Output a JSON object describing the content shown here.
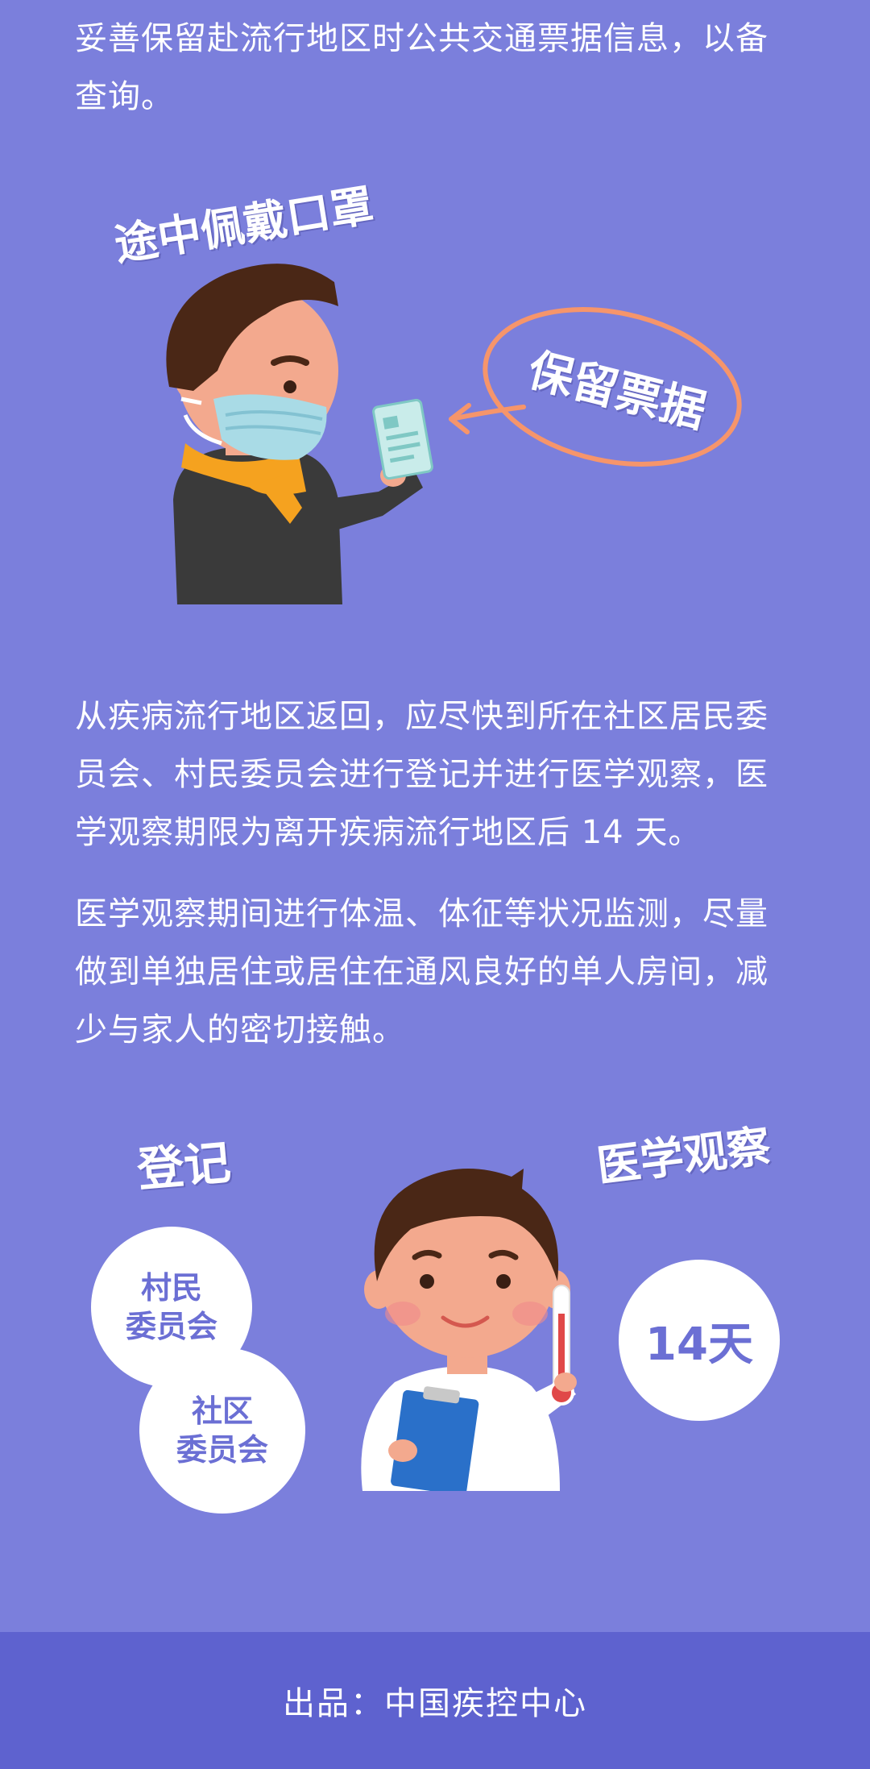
{
  "section1": {
    "paragraph": "妥善保留赴流行地区时公共交通票据信息，以备查询。",
    "label_mask": "途中佩戴口罩",
    "label_ticket": "保留票据"
  },
  "section2": {
    "paragraph1": "从疾病流行地区返回，应尽快到所在社区居民委员会、村民委员会进行登记并进行医学观察，医学观察期限为离开疾病流行地区后 14 天。",
    "paragraph2": "医学观察期间进行体温、体征等状况监测，尽量做到单独居住或居住在通风良好的单人房间，减少与家人的密切接触。"
  },
  "section3": {
    "label_register": "登记",
    "label_observe": "医学观察",
    "bubble_village": [
      "村民",
      "委员会"
    ],
    "bubble_community": [
      "社区",
      "委员会"
    ],
    "bubble_days": "14天"
  },
  "footer": {
    "credit": "出品：中国疾控中心"
  },
  "colors": {
    "background": "#7b7fdc",
    "footer": "#5e62cf",
    "accent_orange": "#f6956b",
    "bubble_text": "#6b6fd4"
  }
}
